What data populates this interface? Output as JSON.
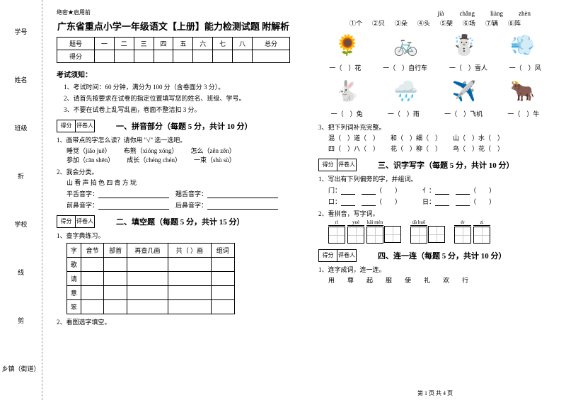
{
  "margin": {
    "m1": "学号",
    "m2": "姓名",
    "m3": "班级",
    "m4": "学校",
    "m5": "乡镇（街道）",
    "cut": "剪",
    "fold": "折",
    "line": "线",
    "seal": "密"
  },
  "header_tag": "绝密★启用前",
  "title": "广东省重点小学一年级语文【上册】能力检测试题 附解析",
  "score_headers": [
    "题号",
    "一",
    "二",
    "三",
    "四",
    "五",
    "六",
    "七",
    "八",
    "总分"
  ],
  "score_row": "得分",
  "notice": {
    "title": "考试须知：",
    "i1": "1、考试时间：60 分钟，满分为 100 分（含卷面分 3 分）。",
    "i2": "2、请首先按要求在试卷的指定位置填写您的姓名、班级、学号。",
    "i3": "3、不要在试卷上乱写乱画，卷面不整洁扣 3 分。"
  },
  "scorebox": {
    "a": "得分",
    "b": "评卷人"
  },
  "s1": {
    "title": "一、拼音部分（每题 5 分，共计 10 分）",
    "q1": "1、画带点的字怎么读？请你用 \"√\" 选一选吧。",
    "r1a": "睡觉（jiǎo juě）",
    "r1b": "布熊（xióng xóng）",
    "r1c": "怎么（zěn zěn）",
    "r2a": "参加（cān shēn）",
    "r2b": "成长（chéng chén）",
    "r2c": "一束（shù sù）",
    "q2": "2、我会分类。",
    "line": "山 看 声 拍 色 四 青 方 玩",
    "l1a": "平舌音字：",
    "l1b": "翘舌音字：",
    "l2a": "前鼻音字：",
    "l2b": "后鼻音字："
  },
  "s2": {
    "title": "二、填空题（每题 5 分，共计 15 分）",
    "q1": "1、查字典练习。",
    "th": [
      "字",
      "音节",
      "部首",
      "再查几画",
      "共（ ）画",
      "组词"
    ],
    "rows": [
      "歌",
      "请",
      "意",
      "笨"
    ],
    "q2": "2、看图选字填空。"
  },
  "right": {
    "opts_py": [
      "jià",
      "chǎng",
      "liàng",
      "zhèn"
    ],
    "opts": [
      "①个",
      "②只",
      "③朵",
      "④头",
      "⑤架",
      "⑥场",
      "⑦辆",
      "⑧阵"
    ],
    "row1": [
      "一（　）花",
      "一（　）自行车",
      "一（　）雪人",
      "一（　）风"
    ],
    "row2": [
      "一（　）兔",
      "一（　）雨",
      "一（　）飞机",
      "一（　）牛"
    ],
    "q3": "3、把下列词补充完整。",
    "w1": [
      "混（　）道（　）",
      "和（　）细（　）",
      "山（　）水（　）"
    ],
    "w2": [
      "四（　）八（　）",
      "花（　）柳（　）",
      "鸟（　）花（　）"
    ]
  },
  "s3": {
    "title": "三、识字写字（每题 5 分，共计 10 分）",
    "q1": "1、写出有下列偏旁的字，并组词。",
    "r1a": "门：",
    "r1b": "亻：",
    "r2a": "口：",
    "r2b": "日：",
    "q2": "2、看拼音，写字词。",
    "py": [
      "rì",
      "yuè",
      "kāi  mén",
      "dà  huǒ",
      "ér",
      "zi"
    ]
  },
  "s4": {
    "title": "四、连一连（每题 5 分，共计 10 分）",
    "q1": "1、连字成词，连一连。",
    "chars": [
      "用",
      "尊",
      "起",
      "服",
      "使",
      "礼",
      "欢",
      "行"
    ]
  },
  "footer": "第 1 页 共 4 页"
}
